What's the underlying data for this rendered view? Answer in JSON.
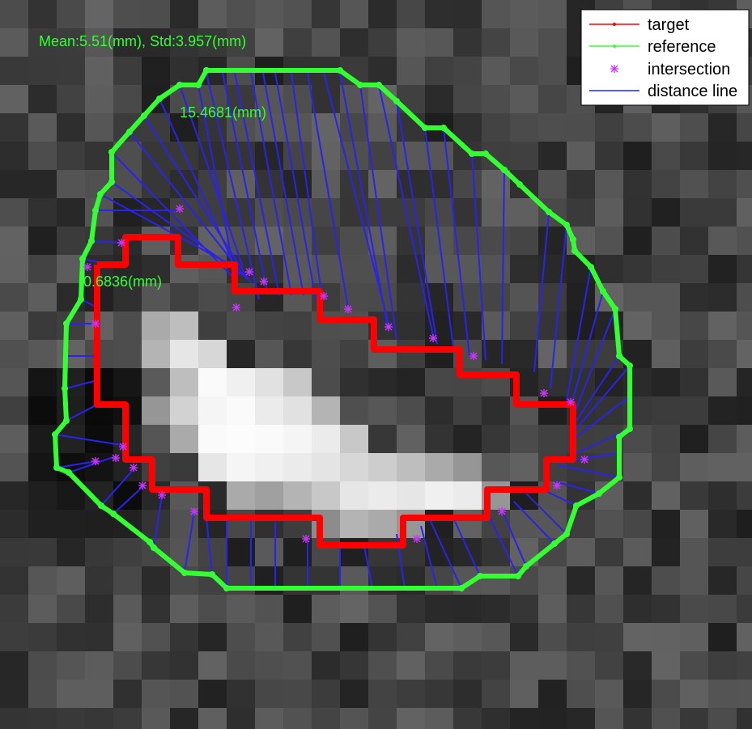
{
  "chart_data": {
    "type": "scatter",
    "title": "",
    "xlabel": "",
    "ylabel": "",
    "grid": false,
    "legend_position": "top-right",
    "annotations": {
      "stats": "Mean:5.51(mm), Std:3.957(mm)",
      "max_distance": "15.4681(mm)",
      "min_distance": "0.6836(mm)"
    },
    "legend": [
      {
        "label": "target",
        "color": "#ff0000",
        "style": "line-dot"
      },
      {
        "label": "reference",
        "color": "#33ff33",
        "style": "line-dot"
      },
      {
        "label": "intersection",
        "color": "#cc33ff",
        "style": "star"
      },
      {
        "label": "distance line",
        "color": "#2020ff",
        "style": "line"
      }
    ],
    "series": [
      {
        "name": "target",
        "color": "#ff0000",
        "points": [
          [
            120,
            327
          ],
          [
            155,
            327
          ],
          [
            155,
            293
          ],
          [
            220,
            293
          ],
          [
            220,
            327
          ],
          [
            290,
            327
          ],
          [
            290,
            360
          ],
          [
            395,
            360
          ],
          [
            395,
            395
          ],
          [
            462,
            395
          ],
          [
            462,
            432
          ],
          [
            568,
            432
          ],
          [
            568,
            463
          ],
          [
            638,
            463
          ],
          [
            638,
            500
          ],
          [
            708,
            500
          ],
          [
            708,
            568
          ],
          [
            675,
            568
          ],
          [
            675,
            605
          ],
          [
            602,
            605
          ],
          [
            602,
            640
          ],
          [
            498,
            640
          ],
          [
            498,
            674
          ],
          [
            395,
            674
          ],
          [
            395,
            640
          ],
          [
            255,
            640
          ],
          [
            255,
            605
          ],
          [
            188,
            605
          ],
          [
            188,
            568
          ],
          [
            155,
            568
          ],
          [
            155,
            500
          ],
          [
            120,
            500
          ],
          [
            120,
            327
          ]
        ]
      },
      {
        "name": "reference",
        "color": "#33ff33",
        "points": [
          [
            255,
            87
          ],
          [
            420,
            87
          ],
          [
            445,
            105
          ],
          [
            468,
            105
          ],
          [
            490,
            125
          ],
          [
            525,
            158
          ],
          [
            548,
            158
          ],
          [
            583,
            190
          ],
          [
            600,
            190
          ],
          [
            623,
            210
          ],
          [
            642,
            228
          ],
          [
            678,
            262
          ],
          [
            700,
            278
          ],
          [
            708,
            296
          ],
          [
            710,
            310
          ],
          [
            730,
            330
          ],
          [
            745,
            360
          ],
          [
            760,
            382
          ],
          [
            765,
            440
          ],
          [
            778,
            452
          ],
          [
            778,
            530
          ],
          [
            765,
            540
          ],
          [
            765,
            590
          ],
          [
            740,
            610
          ],
          [
            712,
            625
          ],
          [
            700,
            660
          ],
          [
            685,
            672
          ],
          [
            650,
            700
          ],
          [
            640,
            712
          ],
          [
            593,
            712
          ],
          [
            570,
            727
          ],
          [
            280,
            727
          ],
          [
            262,
            710
          ],
          [
            228,
            708
          ],
          [
            190,
            677
          ],
          [
            185,
            670
          ],
          [
            140,
            635
          ],
          [
            125,
            625
          ],
          [
            85,
            584
          ],
          [
            70,
            578
          ],
          [
            68,
            537
          ],
          [
            82,
            520
          ],
          [
            80,
            480
          ],
          [
            82,
            400
          ],
          [
            100,
            370
          ],
          [
            102,
            320
          ],
          [
            113,
            298
          ],
          [
            118,
            260
          ],
          [
            124,
            240
          ],
          [
            138,
            225
          ],
          [
            138,
            188
          ],
          [
            160,
            163
          ],
          [
            178,
            143
          ],
          [
            197,
            122
          ],
          [
            222,
            105
          ],
          [
            245,
            105
          ]
        ]
      }
    ],
    "distance_lines": [
      [
        [
          245,
          105
        ],
        [
          290,
          340
        ]
      ],
      [
        [
          255,
          90
        ],
        [
          320,
          370
        ]
      ],
      [
        [
          275,
          90
        ],
        [
          330,
          360
        ]
      ],
      [
        [
          290,
          90
        ],
        [
          345,
          365
        ]
      ],
      [
        [
          310,
          90
        ],
        [
          360,
          365
        ]
      ],
      [
        [
          325,
          90
        ],
        [
          375,
          365
        ]
      ],
      [
        [
          340,
          90
        ],
        [
          390,
          370
        ]
      ],
      [
        [
          360,
          90
        ],
        [
          398,
          370
        ]
      ],
      [
        [
          380,
          90
        ],
        [
          430,
          380
        ]
      ],
      [
        [
          400,
          90
        ],
        [
          480,
          400
        ]
      ],
      [
        [
          420,
          90
        ],
        [
          480,
          410
        ]
      ],
      [
        [
          445,
          105
        ],
        [
          490,
          420
        ]
      ],
      [
        [
          468,
          105
        ],
        [
          535,
          415
        ]
      ],
      [
        [
          490,
          125
        ],
        [
          540,
          425
        ]
      ],
      [
        [
          525,
          158
        ],
        [
          560,
          430
        ]
      ],
      [
        [
          548,
          158
        ],
        [
          580,
          440
        ]
      ],
      [
        [
          583,
          190
        ],
        [
          600,
          445
        ]
      ],
      [
        [
          623,
          210
        ],
        [
          620,
          450
        ]
      ],
      [
        [
          678,
          262
        ],
        [
          660,
          460
        ]
      ],
      [
        [
          700,
          278
        ],
        [
          680,
          480
        ]
      ],
      [
        [
          730,
          330
        ],
        [
          700,
          495
        ]
      ],
      [
        [
          745,
          360
        ],
        [
          706,
          500
        ]
      ],
      [
        [
          760,
          382
        ],
        [
          710,
          510
        ]
      ],
      [
        [
          765,
          440
        ],
        [
          712,
          520
        ]
      ],
      [
        [
          778,
          452
        ],
        [
          712,
          530
        ]
      ],
      [
        [
          778,
          490
        ],
        [
          712,
          540
        ]
      ],
      [
        [
          778,
          530
        ],
        [
          712,
          560
        ]
      ],
      [
        [
          765,
          560
        ],
        [
          700,
          570
        ]
      ],
      [
        [
          765,
          590
        ],
        [
          690,
          575
        ]
      ],
      [
        [
          740,
          610
        ],
        [
          685,
          595
        ]
      ],
      [
        [
          712,
          625
        ],
        [
          670,
          605
        ]
      ],
      [
        [
          700,
          660
        ],
        [
          650,
          610
        ]
      ],
      [
        [
          685,
          672
        ],
        [
          635,
          620
        ]
      ],
      [
        [
          650,
          700
        ],
        [
          620,
          630
        ]
      ],
      [
        [
          640,
          712
        ],
        [
          605,
          640
        ]
      ],
      [
        [
          593,
          712
        ],
        [
          560,
          640
        ]
      ],
      [
        [
          570,
          727
        ],
        [
          530,
          640
        ]
      ],
      [
        [
          540,
          727
        ],
        [
          520,
          650
        ]
      ],
      [
        [
          500,
          727
        ],
        [
          490,
          660
        ]
      ],
      [
        [
          460,
          727
        ],
        [
          450,
          675
        ]
      ],
      [
        [
          420,
          727
        ],
        [
          420,
          675
        ]
      ],
      [
        [
          380,
          727
        ],
        [
          380,
          668
        ]
      ],
      [
        [
          340,
          727
        ],
        [
          340,
          645
        ]
      ],
      [
        [
          310,
          727
        ],
        [
          310,
          640
        ]
      ],
      [
        [
          280,
          727
        ],
        [
          280,
          640
        ]
      ],
      [
        [
          262,
          710
        ],
        [
          255,
          640
        ]
      ],
      [
        [
          228,
          708
        ],
        [
          240,
          632
        ]
      ],
      [
        [
          190,
          677
        ],
        [
          200,
          612
        ]
      ],
      [
        [
          140,
          635
        ],
        [
          178,
          600
        ]
      ],
      [
        [
          125,
          625
        ],
        [
          165,
          580
        ]
      ],
      [
        [
          85,
          584
        ],
        [
          140,
          565
        ]
      ],
      [
        [
          70,
          578
        ],
        [
          120,
          570
        ]
      ],
      [
        [
          68,
          537
        ],
        [
          150,
          550
        ]
      ],
      [
        [
          82,
          520
        ],
        [
          120,
          500
        ]
      ],
      [
        [
          82,
          480
        ],
        [
          120,
          470
        ]
      ],
      [
        [
          82,
          440
        ],
        [
          120,
          440
        ]
      ],
      [
        [
          82,
          400
        ],
        [
          120,
          400
        ]
      ],
      [
        [
          100,
          370
        ],
        [
          120,
          380
        ]
      ],
      [
        [
          102,
          320
        ],
        [
          150,
          330
        ]
      ],
      [
        [
          113,
          298
        ],
        [
          150,
          300
        ]
      ],
      [
        [
          118,
          260
        ],
        [
          220,
          260
        ]
      ],
      [
        [
          124,
          240
        ],
        [
          290,
          330
        ]
      ],
      [
        [
          138,
          225
        ],
        [
          300,
          340
        ]
      ],
      [
        [
          138,
          188
        ],
        [
          290,
          345
        ]
      ],
      [
        [
          160,
          163
        ],
        [
          305,
          345
        ]
      ],
      [
        [
          178,
          143
        ],
        [
          310,
          350
        ]
      ],
      [
        [
          197,
          122
        ],
        [
          295,
          340
        ]
      ],
      [
        [
          222,
          105
        ],
        [
          300,
          330
        ]
      ]
    ],
    "intersections": [
      [
        118,
        400
      ],
      [
        150,
        300
      ],
      [
        108,
        330
      ],
      [
        222,
        258
      ],
      [
        308,
        336
      ],
      [
        326,
        348
      ],
      [
        292,
        380
      ],
      [
        400,
        366
      ],
      [
        430,
        382
      ],
      [
        480,
        404
      ],
      [
        535,
        418
      ],
      [
        585,
        440
      ],
      [
        672,
        486
      ],
      [
        705,
        497
      ],
      [
        722,
        568
      ],
      [
        688,
        600
      ],
      [
        620,
        632
      ],
      [
        515,
        666
      ],
      [
        378,
        666
      ],
      [
        240,
        632
      ],
      [
        200,
        612
      ],
      [
        176,
        600
      ],
      [
        165,
        578
      ],
      [
        143,
        566
      ],
      [
        118,
        570
      ],
      [
        152,
        552
      ]
    ]
  }
}
